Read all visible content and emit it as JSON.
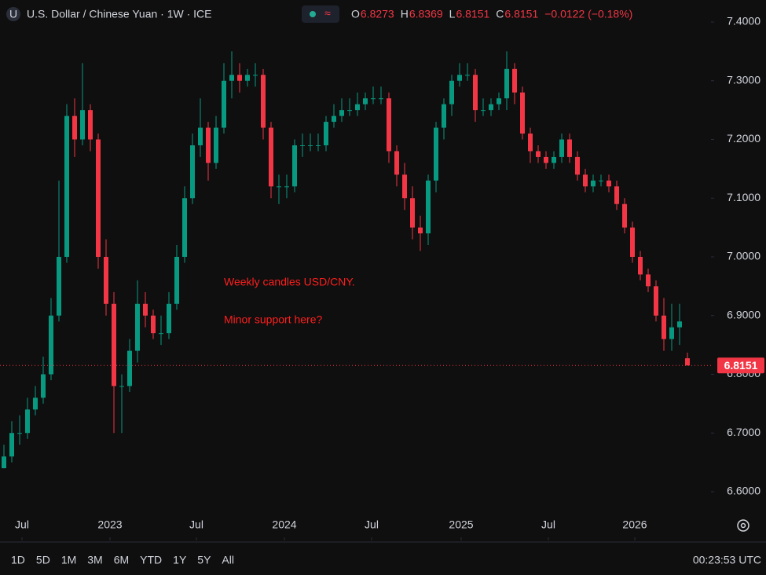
{
  "chart_data": {
    "type": "candlestick",
    "title": "U.S. Dollar / Chinese Yuan · 1W · ICE",
    "symbol_icon": "U",
    "ohlc_letters": [
      "O",
      "H",
      "L",
      "C"
    ],
    "change": "−0.0122 (−0.18%)",
    "annotation": [
      "Weekly candles USD/CNY.",
      "Minor support here?"
    ],
    "up_color": "#089981",
    "down_color": "#f23645",
    "open": [
      6.64,
      6.66,
      6.7,
      6.7,
      6.74,
      6.76,
      6.8,
      6.9,
      7.0,
      7.24,
      7.2,
      7.25,
      7.2,
      7.0,
      6.92,
      6.78,
      6.78,
      6.84,
      6.92,
      6.9,
      6.87,
      6.87,
      6.92,
      7.0,
      7.1,
      7.19,
      7.22,
      7.16,
      7.22,
      7.3,
      7.31,
      7.3,
      7.31,
      7.31,
      7.22,
      7.12,
      7.12,
      7.12,
      7.19,
      7.19,
      7.19,
      7.19,
      7.23,
      7.24,
      7.25,
      7.25,
      7.26,
      7.27,
      7.27,
      7.27,
      7.18,
      7.14,
      7.1,
      7.05,
      7.04,
      7.13,
      7.22,
      7.26,
      7.3,
      7.31,
      7.31,
      7.25,
      7.25,
      7.26,
      7.27,
      7.32,
      7.28,
      7.21,
      7.18,
      7.17,
      7.16,
      7.17,
      7.2,
      7.17,
      7.14,
      7.12,
      7.13,
      7.13,
      7.12,
      7.09,
      7.05,
      7.0,
      6.97,
      6.95,
      6.9,
      6.86,
      6.88,
      6.8273
    ],
    "high": [
      6.68,
      6.72,
      6.73,
      6.76,
      6.78,
      6.83,
      6.93,
      7.13,
      7.26,
      7.27,
      7.33,
      7.26,
      7.21,
      7.03,
      6.94,
      6.8,
      6.86,
      6.96,
      6.94,
      6.91,
      6.9,
      6.94,
      7.02,
      7.12,
      7.21,
      7.27,
      7.23,
      7.24,
      7.33,
      7.35,
      7.33,
      7.32,
      7.33,
      7.32,
      7.23,
      7.14,
      7.14,
      7.2,
      7.21,
      7.21,
      7.21,
      7.24,
      7.26,
      7.27,
      7.27,
      7.28,
      7.28,
      7.29,
      7.29,
      7.28,
      7.19,
      7.16,
      7.12,
      7.07,
      7.14,
      7.23,
      7.27,
      7.31,
      7.33,
      7.33,
      7.32,
      7.27,
      7.27,
      7.28,
      7.35,
      7.33,
      7.29,
      7.22,
      7.19,
      7.18,
      7.18,
      7.21,
      7.21,
      7.18,
      7.15,
      7.14,
      7.14,
      7.14,
      7.13,
      7.1,
      7.06,
      7.01,
      6.98,
      6.96,
      6.93,
      6.92,
      6.92,
      6.8369
    ],
    "low": [
      6.64,
      6.65,
      6.68,
      6.69,
      6.73,
      6.75,
      6.79,
      6.89,
      6.99,
      7.17,
      7.19,
      7.18,
      6.98,
      6.9,
      6.7,
      6.7,
      6.77,
      6.82,
      6.88,
      6.86,
      6.85,
      6.86,
      6.91,
      6.99,
      7.09,
      7.17,
      7.13,
      7.15,
      7.21,
      7.27,
      7.28,
      7.29,
      7.29,
      7.2,
      7.1,
      7.09,
      7.1,
      7.11,
      7.17,
      7.18,
      7.18,
      7.18,
      7.22,
      7.23,
      7.24,
      7.24,
      7.25,
      7.26,
      7.26,
      7.16,
      7.12,
      7.08,
      7.03,
      7.01,
      7.02,
      7.11,
      7.2,
      7.24,
      7.29,
      7.3,
      7.23,
      7.24,
      7.24,
      7.25,
      7.25,
      7.26,
      7.2,
      7.16,
      7.16,
      7.15,
      7.15,
      7.16,
      7.16,
      7.13,
      7.11,
      7.11,
      7.12,
      7.11,
      7.08,
      7.04,
      6.99,
      6.96,
      6.94,
      6.89,
      6.84,
      6.84,
      6.85,
      6.8151
    ],
    "close": [
      6.66,
      6.7,
      6.7,
      6.74,
      6.76,
      6.8,
      6.9,
      7.0,
      7.24,
      7.2,
      7.25,
      7.2,
      7.0,
      6.92,
      6.78,
      6.78,
      6.84,
      6.92,
      6.9,
      6.87,
      6.87,
      6.92,
      7.0,
      7.1,
      7.19,
      7.22,
      7.16,
      7.22,
      7.3,
      7.31,
      7.3,
      7.31,
      7.31,
      7.22,
      7.12,
      7.12,
      7.12,
      7.19,
      7.19,
      7.19,
      7.19,
      7.23,
      7.24,
      7.25,
      7.25,
      7.26,
      7.27,
      7.27,
      7.27,
      7.18,
      7.14,
      7.1,
      7.05,
      7.04,
      7.13,
      7.22,
      7.26,
      7.3,
      7.31,
      7.31,
      7.25,
      7.25,
      7.26,
      7.27,
      7.32,
      7.28,
      7.21,
      7.18,
      7.17,
      7.16,
      7.17,
      7.2,
      7.17,
      7.14,
      7.12,
      7.13,
      7.13,
      7.12,
      7.09,
      7.05,
      7.0,
      6.97,
      6.95,
      6.9,
      6.86,
      6.88,
      6.89,
      6.8151
    ],
    "xlim": [
      -0.5,
      90
    ],
    "xticks": [
      {
        "value": 2.3,
        "label": "Jul"
      },
      {
        "value": 13.5,
        "label": "2023"
      },
      {
        "value": 24.5,
        "label": "Jul"
      },
      {
        "value": 35.7,
        "label": "2024"
      },
      {
        "value": 46.8,
        "label": "Jul"
      },
      {
        "value": 58.2,
        "label": "2025"
      },
      {
        "value": 69.3,
        "label": "Jul"
      },
      {
        "value": 80.3,
        "label": "2026"
      }
    ],
    "ylim": [
      6.517,
      7.4375
    ],
    "yticks": [
      {
        "value": 6.6,
        "label": "6.6000"
      },
      {
        "value": 6.7,
        "label": "6.7000"
      },
      {
        "value": 6.8,
        "label": "6.8000"
      },
      {
        "value": 6.9,
        "label": "6.9000"
      },
      {
        "value": 7.0,
        "label": "7.0000"
      },
      {
        "value": 7.1,
        "label": "7.1000"
      },
      {
        "value": 7.2,
        "label": "7.2000"
      },
      {
        "value": 7.3,
        "label": "7.3000"
      },
      {
        "value": 7.4,
        "label": "7.4000"
      }
    ],
    "last_price_line": true,
    "range_buttons": [
      "1D",
      "5D",
      "1M",
      "3M",
      "6M",
      "YTD",
      "1Y",
      "5Y",
      "All"
    ],
    "clock": "00:23:53 UTC"
  }
}
